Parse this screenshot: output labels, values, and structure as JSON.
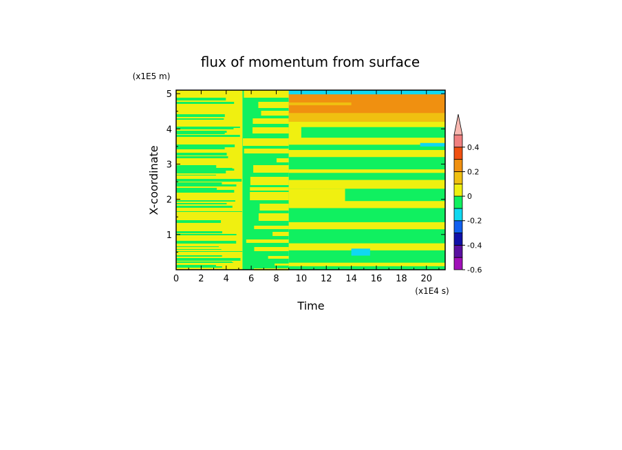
{
  "chart_data": {
    "type": "heatmap",
    "title": "flux of momentum from surface",
    "xlabel": "Time",
    "ylabel": "X-coordinate",
    "x_unit": "(x1E4 s)",
    "y_unit": "(x1E5 m)",
    "xlim": [
      0,
      21.5
    ],
    "ylim": [
      0,
      5.1
    ],
    "x_ticks": [
      0,
      2,
      4,
      6,
      8,
      10,
      12,
      14,
      16,
      18,
      20
    ],
    "y_ticks": [
      1,
      2,
      3,
      4,
      5
    ],
    "x_tick_labels": [
      "0",
      "2",
      "4",
      "6",
      "8",
      "10",
      "12",
      "14",
      "16",
      "18",
      "20"
    ],
    "y_tick_labels": [
      "1",
      "2",
      "3",
      "4",
      "5"
    ],
    "colorbar": {
      "levels": [
        -0.6,
        -0.5,
        -0.4,
        -0.3,
        -0.2,
        -0.1,
        0,
        0.1,
        0.2,
        0.3,
        0.4,
        0.5
      ],
      "tick_labels": [
        "-0.6",
        "-0.4",
        "-0.2",
        "0",
        "0.2",
        "0.4"
      ],
      "tick_values": [
        -0.6,
        -0.4,
        -0.2,
        0,
        0.2,
        0.4
      ],
      "colors": [
        "#a010b8",
        "#5a10a0",
        "#1010a8",
        "#1060f0",
        "#10d8f0",
        "#10f060",
        "#f0f010",
        "#f0c010",
        "#f09010",
        "#f05010",
        "#f08080"
      ],
      "over_color": "#f8b8b0",
      "extend": "max"
    },
    "regions": [
      {
        "x": [
          0,
          5.3
        ],
        "y": [
          0,
          5.1
        ],
        "value": 0.05,
        "pattern": "stripes"
      },
      {
        "x": [
          5.3,
          9
        ],
        "y": [
          0,
          5.1
        ],
        "value": -0.05,
        "pattern": "transition"
      },
      {
        "x": [
          9,
          21.5
        ],
        "y": [
          4.2,
          5.0
        ],
        "value": 0.25
      },
      {
        "x": [
          9,
          21.5
        ],
        "y": [
          4.98,
          5.1
        ],
        "value": -0.15
      },
      {
        "x": [
          9,
          21.5
        ],
        "y": [
          0,
          4.2
        ],
        "value": -0.05,
        "pattern": "bands"
      },
      {
        "x": [
          14,
          15.5
        ],
        "y": [
          0.4,
          0.6
        ],
        "value": -0.15
      },
      {
        "x": [
          19.5,
          21.5
        ],
        "y": [
          3.5,
          3.6
        ],
        "value": -0.15
      }
    ]
  }
}
